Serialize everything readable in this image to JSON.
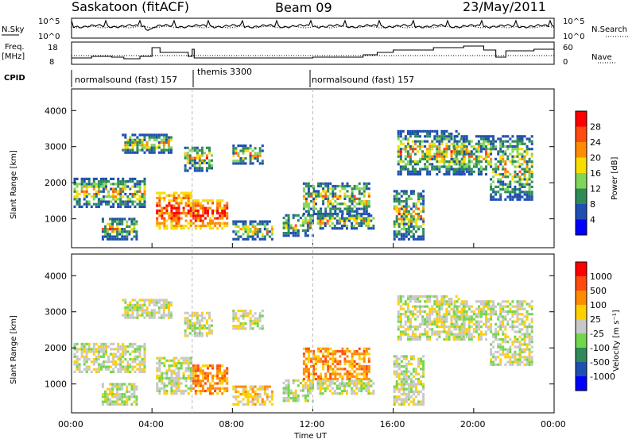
{
  "header": {
    "left": "Saskatoon (fitACF)",
    "center": "Beam 09",
    "right": "23/May/2011"
  },
  "chart_data": [
    {
      "type": "line",
      "title": "",
      "left_label": "N.Sky",
      "right_label": "N.Search",
      "left_ticks": [
        "10^5",
        "10^0"
      ],
      "right_ticks": [
        "10^5",
        "10^0"
      ]
    },
    {
      "type": "line",
      "left_label_1": "Freq.",
      "left_label_2": "[MHz]",
      "right_label": "Nave",
      "left_ticks": [
        "18",
        "8"
      ],
      "right_ticks": [
        "60",
        "0"
      ]
    },
    {
      "type": "table",
      "label": "CPID",
      "segments": [
        {
          "label": "normalsound (fast) 157",
          "start_hour": 0,
          "end_hour": 6
        },
        {
          "label": "themis 3300",
          "start_hour": 6,
          "end_hour": 12
        },
        {
          "label": "normalsound (fast) 157",
          "start_hour": 12,
          "end_hour": 24
        }
      ]
    },
    {
      "type": "heatmap",
      "parameter": "Power",
      "colorbar_label": "Power [dB]",
      "colorbar_ticks": [
        "28",
        "24",
        "20",
        "16",
        "12",
        "8",
        "4"
      ],
      "colors": [
        "#0000ff",
        "#1f4fb0",
        "#2e8b57",
        "#7fd65a",
        "#f7dd00",
        "#ff8c00",
        "#ff4a10",
        "#ff0000"
      ],
      "ylabel": "Slant Range [km]",
      "yticks": [
        "4000",
        "3000",
        "2000",
        "1000"
      ],
      "ylim": [
        200,
        4600
      ],
      "xlim": [
        0,
        24
      ]
    },
    {
      "type": "heatmap",
      "parameter": "Velocity",
      "colorbar_label": "Velocity [m s⁻¹]",
      "colorbar_ticks": [
        "1000",
        "500",
        "100",
        "25",
        "-25",
        "-100",
        "-500",
        "-1000"
      ],
      "colors": [
        "#0000ff",
        "#1f4fb0",
        "#2e8b57",
        "#72d64a",
        "#c8c8c8",
        "#ffd000",
        "#ff8c00",
        "#ff4a10",
        "#ff0000"
      ],
      "ylabel": "Slant Range [km]",
      "yticks": [
        "4000",
        "3000",
        "2000",
        "1000"
      ],
      "ylim": [
        200,
        4600
      ],
      "xlim": [
        0,
        24
      ],
      "xticks": [
        "00:00",
        "04:00",
        "08:00",
        "12:00",
        "16:00",
        "20:00",
        "00:00"
      ],
      "xlabel": "Time UT"
    }
  ]
}
